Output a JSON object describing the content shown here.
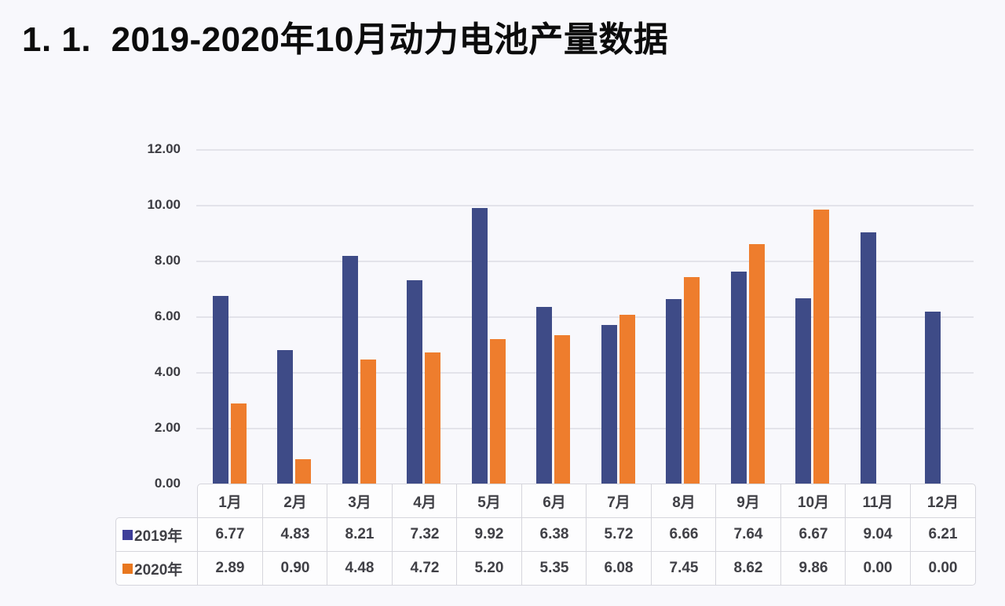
{
  "page": {
    "title": "1. 1.  2019-2020年10月动力电池产量数据"
  },
  "colors": {
    "background": "#f8f8fc",
    "gridline": "#e3e3ea",
    "table_border": "#d5d5dc",
    "cell_background": "#fdfdfe",
    "text": "#404046",
    "title_text": "#0c0c0c",
    "series_2019": "#3e4b87",
    "series_2020": "#ee7d2d"
  },
  "chart_data": {
    "type": "bar",
    "title": "1. 1.  2019-2020年10月动力电池产量数据",
    "xlabel": "",
    "ylabel": "",
    "categories": [
      "1月",
      "2月",
      "3月",
      "4月",
      "5月",
      "6月",
      "7月",
      "8月",
      "9月",
      "10月",
      "11月",
      "12月"
    ],
    "series": [
      {
        "name": "2019年",
        "color": "#3e4b87",
        "legend_color": "#3d3d99",
        "values": [
          6.77,
          4.83,
          8.21,
          7.32,
          9.92,
          6.38,
          5.72,
          6.66,
          7.64,
          6.67,
          9.04,
          6.21
        ]
      },
      {
        "name": "2020年",
        "color": "#ee7d2d",
        "legend_color": "#e8771f",
        "values": [
          2.89,
          0.9,
          4.48,
          4.72,
          5.2,
          5.35,
          6.08,
          7.45,
          8.62,
          9.86,
          0.0,
          0.0
        ]
      }
    ],
    "ylim": [
      0,
      12
    ],
    "ytick_step": 2,
    "ytick_labels": [
      "0.00",
      "2.00",
      "4.00",
      "6.00",
      "8.00",
      "10.00",
      "12.00"
    ],
    "grid": true,
    "legend_position": "left-of-data-table-rows",
    "data_table_below_axis": true,
    "value_decimals": 2
  }
}
